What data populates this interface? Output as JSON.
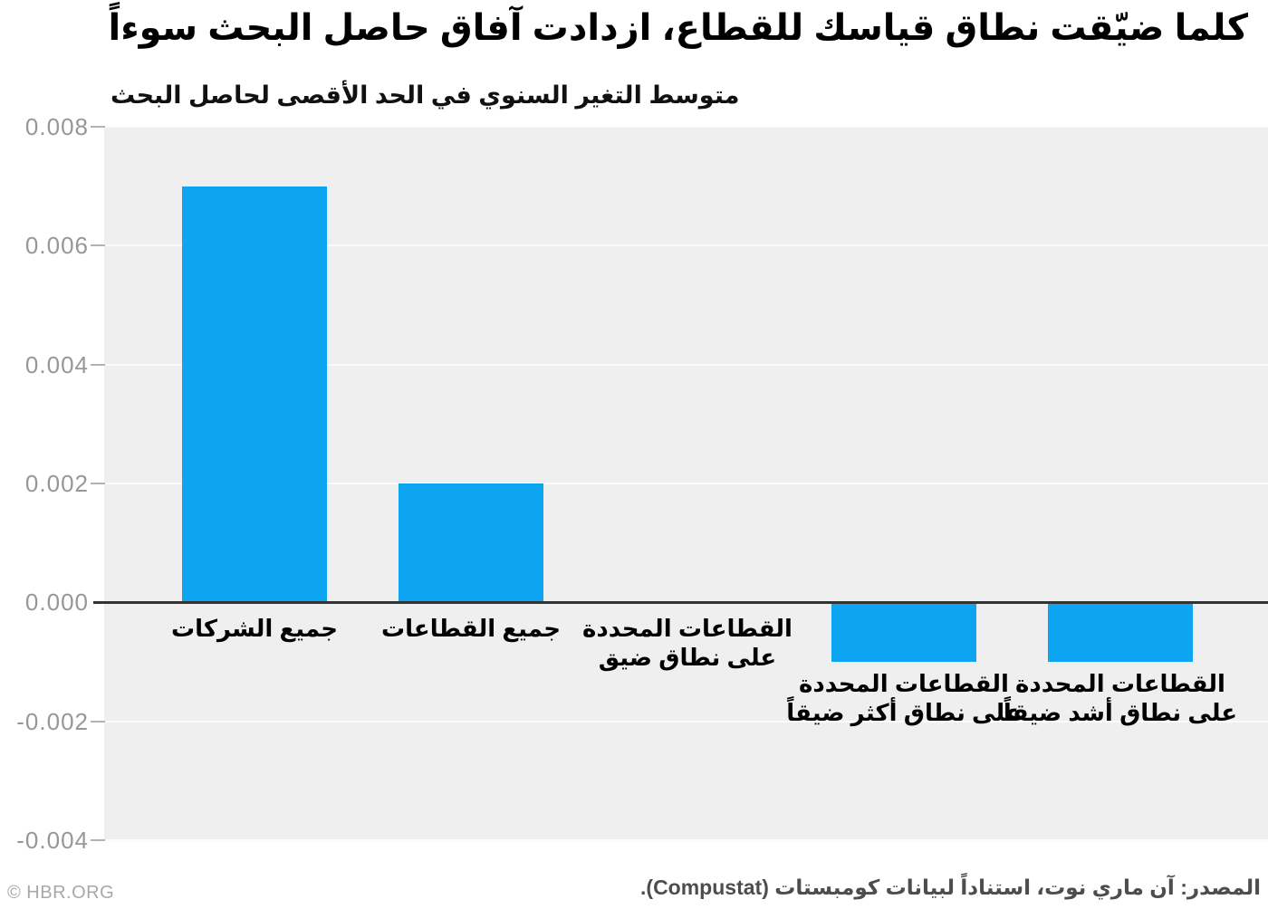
{
  "chart_data": {
    "type": "bar",
    "title": "كلما ضيّقت نطاق قياسك للقطاع، ازدادت آفاق حاصل البحث سوءاً",
    "axis_title": "متوسط التغير السنوي في الحد الأقصى لحاصل البحث",
    "categories": [
      "جميع الشركات",
      "جميع القطاعات",
      "القطاعات المحددة على نطاق ضيق",
      "القطاعات المحددة على نطاق أكثر ضيقاً",
      "القطاعات المحددة على نطاق أشد ضيقاً"
    ],
    "category_lines": [
      [
        "جميع الشركات"
      ],
      [
        "جميع القطاعات"
      ],
      [
        "القطاعات المحددة",
        "على نطاق ضيق"
      ],
      [
        "القطاعات المحددة",
        "على نطاق أكثر ضيقاً"
      ],
      [
        "القطاعات المحددة",
        "على نطاق أشد ضيقاً"
      ]
    ],
    "values": [
      0.007,
      0.002,
      0.0,
      -0.001,
      -0.001
    ],
    "ylim": [
      -0.004,
      0.008
    ],
    "ytick_step": 0.002,
    "yticks": [
      {
        "label": "0.008",
        "value": 0.008
      },
      {
        "label": "0.006",
        "value": 0.006
      },
      {
        "label": "0.004",
        "value": 0.004
      },
      {
        "label": "0.002",
        "value": 0.002
      },
      {
        "label": "0.000",
        "value": 0.0
      },
      {
        "label": "-0.002",
        "value": -0.002
      },
      {
        "label": "-0.004",
        "value": -0.004
      }
    ],
    "grid": true,
    "legend": null,
    "colors": {
      "bar": "#0da4f2",
      "plot_bg": "#efefef",
      "gridline": "#fbfbfb",
      "zero_line": "#333333",
      "tick_text": "#979797"
    }
  },
  "footer": {
    "credit": "© HBR.ORG",
    "source": "المصدر: آن ماري نوت، استناداً لبيانات كومبستات (Compustat)."
  }
}
